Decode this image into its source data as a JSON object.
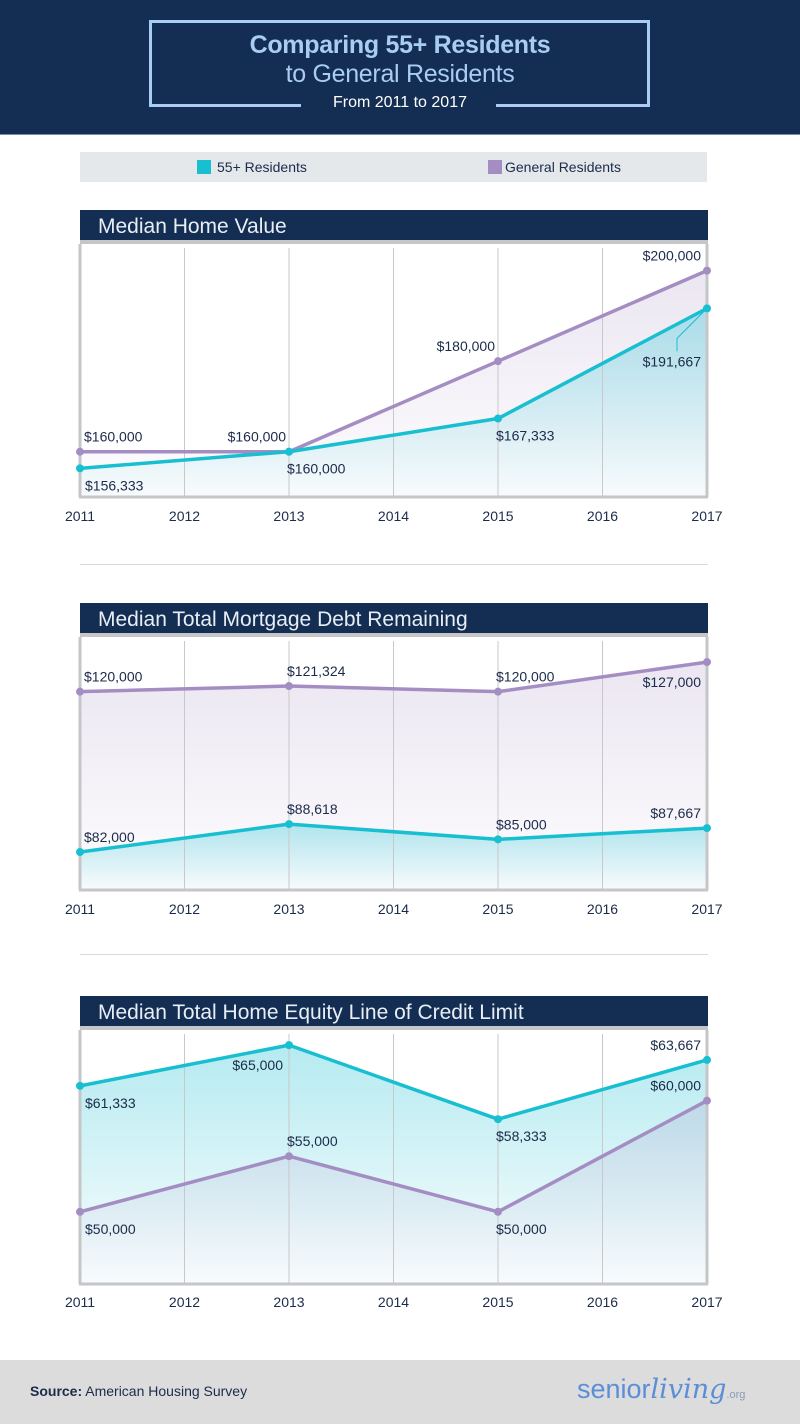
{
  "header": {
    "title_line1": "Comparing 55+ Residents",
    "title_line2": "to General Residents",
    "subtitle": "From 2011 to 2017"
  },
  "legend": [
    {
      "label": "55+ Residents",
      "color": "#17bfd1"
    },
    {
      "label": "General Residents",
      "color": "#a48dc2"
    }
  ],
  "colors": {
    "senior": "#17bfd1",
    "general": "#a48dc2",
    "header_bg": "#132e52",
    "title_accent": "#a9cdf2"
  },
  "chart_data": [
    {
      "type": "line",
      "title": "Median Home Value",
      "x": [
        2011,
        2012,
        2013,
        2014,
        2015,
        2016,
        2017
      ],
      "xticks": [
        "2011",
        "2012",
        "2013",
        "2014",
        "2015",
        "2016",
        "2017"
      ],
      "ylim": [
        150000,
        205000
      ],
      "grid": true,
      "series": [
        {
          "name": "General Residents",
          "key": "general",
          "x": [
            2011,
            2013,
            2015,
            2017
          ],
          "values": [
            160000,
            160000,
            180000,
            200000
          ],
          "labels": [
            "$160,000",
            "$160,000",
            "$180,000",
            "$200,000"
          ],
          "label_pos": [
            "above",
            "above-left",
            "above-left",
            "above-left"
          ]
        },
        {
          "name": "55+ Residents",
          "key": "senior",
          "x": [
            2011,
            2013,
            2015,
            2017
          ],
          "values": [
            156333,
            160000,
            167333,
            191667
          ],
          "labels": [
            "$156,333",
            "$160,000",
            "$167,333",
            "$191,667"
          ],
          "label_pos": [
            "below",
            "below",
            "below",
            "callout-left"
          ]
        }
      ]
    },
    {
      "type": "line",
      "title": "Median Total Mortgage Debt Remaining",
      "x": [
        2011,
        2012,
        2013,
        2014,
        2015,
        2016,
        2017
      ],
      "xticks": [
        "2011",
        "2012",
        "2013",
        "2014",
        "2015",
        "2016",
        "2017"
      ],
      "ylim": [
        73000,
        132000
      ],
      "grid": true,
      "series": [
        {
          "name": "General Residents",
          "key": "general",
          "x": [
            2011,
            2013,
            2015,
            2017
          ],
          "values": [
            120000,
            121324,
            120000,
            127000
          ],
          "labels": [
            "$120,000",
            "$121,324",
            "$120,000",
            "$127,000"
          ],
          "label_pos": [
            "above",
            "above",
            "above",
            "below-left"
          ]
        },
        {
          "name": "55+ Residents",
          "key": "senior",
          "x": [
            2011,
            2013,
            2015,
            2017
          ],
          "values": [
            82000,
            88618,
            85000,
            87667
          ],
          "labels": [
            "$82,000",
            "$88,618",
            "$85,000",
            "$87,667"
          ],
          "label_pos": [
            "above",
            "above",
            "above",
            "above-left"
          ]
        }
      ]
    },
    {
      "type": "line",
      "title": "Median Total Home Equity Line of Credit Limit",
      "x": [
        2011,
        2012,
        2013,
        2014,
        2015,
        2016,
        2017
      ],
      "xticks": [
        "2011",
        "2012",
        "2013",
        "2014",
        "2015",
        "2016",
        "2017"
      ],
      "ylim": [
        43500,
        66000
      ],
      "grid": true,
      "series": [
        {
          "name": "55+ Residents",
          "key": "senior",
          "x": [
            2011,
            2013,
            2015,
            2017
          ],
          "values": [
            61333,
            65000,
            58333,
            63667
          ],
          "labels": [
            "$61,333",
            "$65,000",
            "$58,333",
            "$63,667"
          ],
          "label_pos": [
            "below",
            "below-left",
            "below",
            "above-left"
          ]
        },
        {
          "name": "General Residents",
          "key": "general",
          "x": [
            2011,
            2013,
            2015,
            2017
          ],
          "values": [
            50000,
            55000,
            50000,
            60000
          ],
          "labels": [
            "$50,000",
            "$55,000",
            "$50,000",
            "$60,000"
          ],
          "label_pos": [
            "below",
            "above",
            "below",
            "above-left"
          ]
        }
      ]
    }
  ],
  "footer": {
    "source_label": "Source:",
    "source_text": "American Housing Survey",
    "logo_part1": "senior",
    "logo_part2": "living",
    "logo_part3": ".org"
  }
}
